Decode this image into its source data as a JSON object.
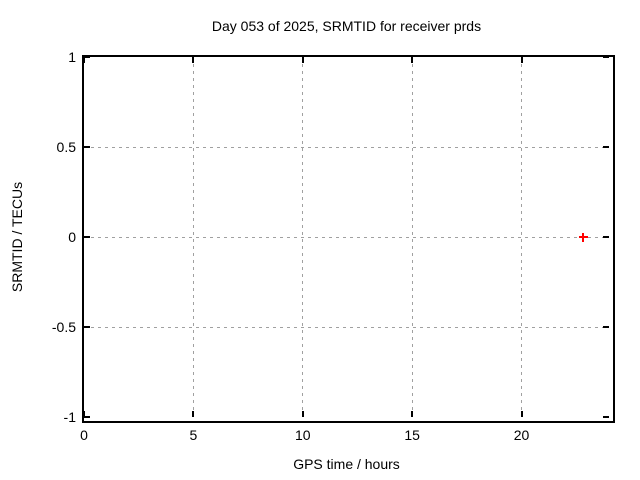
{
  "page": {
    "background": "#ffffff"
  },
  "chart_data": {
    "type": "scatter",
    "title": "Day 053 of 2025, SRMTID for receiver prds",
    "xlabel": "GPS time / hours",
    "ylabel": "SRMTID / TECUs",
    "xlim": [
      0,
      24
    ],
    "ylim": [
      -1,
      1
    ],
    "x_ticks": [
      0,
      5,
      10,
      15,
      20
    ],
    "y_ticks": [
      1,
      0.5,
      0,
      -0.5,
      -1
    ],
    "grid": true,
    "legend_position": "none",
    "series": [
      {
        "name": "SRMTID",
        "marker": "plus",
        "color": "#ff0000",
        "points": [
          {
            "x": 22.8,
            "y": 0
          }
        ]
      }
    ],
    "colors": {
      "border": "#000000",
      "grid": "#a0a0a0",
      "text": "#000000"
    }
  }
}
